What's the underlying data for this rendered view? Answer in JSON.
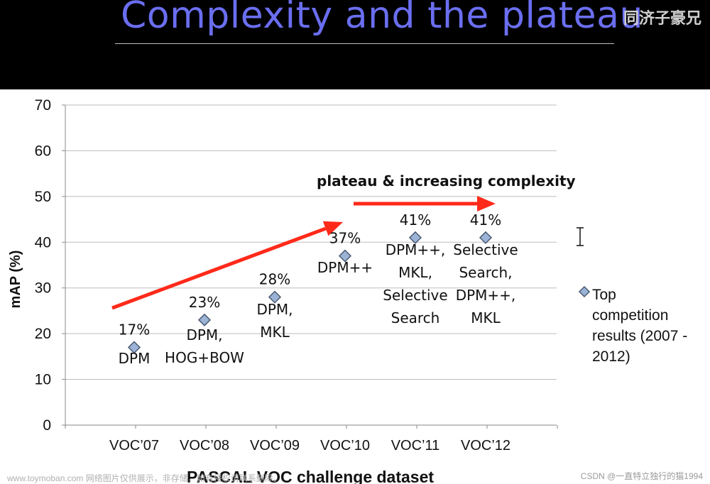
{
  "slide": {
    "title": "Complexity and the plateau",
    "corner_text": "同济子豪兄"
  },
  "chart_data": {
    "type": "scatter",
    "ylabel": "mAP  (%)",
    "xlabel": "PASCAL VOC challenge dataset",
    "ylim": [
      0,
      70
    ],
    "yticks": [
      0,
      10,
      20,
      30,
      40,
      50,
      60,
      70
    ],
    "grid": true,
    "categories": [
      "VOC’07",
      "VOC’08",
      "VOC’09",
      "VOC’10",
      "VOC’11",
      "VOC’12"
    ],
    "series": [
      {
        "name": "Top competition results (2007 - 2012)",
        "color": "#9bb3d6",
        "values": [
          17,
          23,
          28,
          37,
          41,
          41
        ],
        "value_labels": [
          "17%",
          "23%",
          "28%",
          "37%",
          "41%",
          "41%"
        ],
        "method_labels": [
          [
            "DPM"
          ],
          [
            "DPM,",
            "HOG+BOW"
          ],
          [
            "DPM,",
            "MKL"
          ],
          [
            "DPM++"
          ],
          [
            "DPM++,",
            "MKL,",
            "Selective",
            "Search"
          ],
          [
            "Selective",
            "Search,",
            "DPM++,",
            "MKL"
          ]
        ]
      }
    ],
    "legend": {
      "position": "right",
      "lines": [
        "Top",
        "competition",
        "results (2007 -",
        "2012)"
      ]
    },
    "annotations": {
      "plateau_text": "plateau & increasing complexity",
      "arrow_color": "#ff2a1a"
    }
  },
  "watermarks": {
    "left": "www.toymoban.com 网络图片仅供展示，非存储，如有侵权请联系删除。",
    "right": "CSDN @一直特立独行的猫1994"
  }
}
